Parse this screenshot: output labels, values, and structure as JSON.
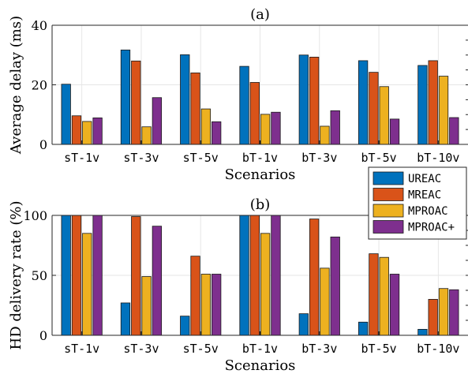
{
  "legend": {
    "placement": "right, between panels",
    "entries": [
      "UREAC",
      "MREAC",
      "MPROAC",
      "MPROAC+"
    ]
  },
  "colors": {
    "UREAC": "#0072BD",
    "MREAC": "#D95319",
    "MPROAC": "#EDB120",
    "MPROAC+": "#7E2F8E",
    "grid": "#e6e6e6",
    "axis": "#262626"
  },
  "chart_data": [
    {
      "type": "bar",
      "title": "(a)",
      "xlabel": "Scenarios",
      "ylabel": "Average delay (ms)",
      "categories": [
        "sT-1v",
        "sT-3v",
        "sT-5v",
        "bT-1v",
        "bT-3v",
        "bT-5v",
        "bT-10v"
      ],
      "ylim": [
        0,
        40
      ],
      "yticks": [
        0,
        20,
        40
      ],
      "grid": true,
      "series": [
        {
          "name": "UREAC",
          "values": [
            20.2,
            31.7,
            30.1,
            26.2,
            30.0,
            28.1,
            26.5
          ]
        },
        {
          "name": "MREAC",
          "values": [
            9.6,
            28.0,
            24.0,
            20.8,
            29.3,
            24.2,
            28.1
          ]
        },
        {
          "name": "MPROAC",
          "values": [
            7.7,
            5.9,
            11.9,
            10.1,
            6.1,
            19.4,
            22.9
          ]
        },
        {
          "name": "MPROAC+",
          "values": [
            8.9,
            15.7,
            7.6,
            10.8,
            11.3,
            8.5,
            9.0
          ]
        }
      ]
    },
    {
      "type": "bar",
      "title": "(b)",
      "xlabel": "Scenarios",
      "ylabel": "HD delivery rate (%)",
      "categories": [
        "sT-1v",
        "sT-3v",
        "sT-5v",
        "bT-1v",
        "bT-3v",
        "bT-5v",
        "bT-10v"
      ],
      "ylim": [
        0,
        100
      ],
      "yticks": [
        0,
        50,
        100
      ],
      "grid": true,
      "series": [
        {
          "name": "UREAC",
          "values": [
            100,
            27,
            16,
            100,
            18,
            11,
            5
          ]
        },
        {
          "name": "MREAC",
          "values": [
            100,
            99,
            66,
            100,
            97,
            68,
            30
          ]
        },
        {
          "name": "MPROAC",
          "values": [
            85,
            49,
            51,
            85,
            56,
            65,
            39
          ]
        },
        {
          "name": "MPROAC+",
          "values": [
            100,
            91,
            51,
            100,
            82,
            51,
            38
          ]
        }
      ]
    }
  ]
}
